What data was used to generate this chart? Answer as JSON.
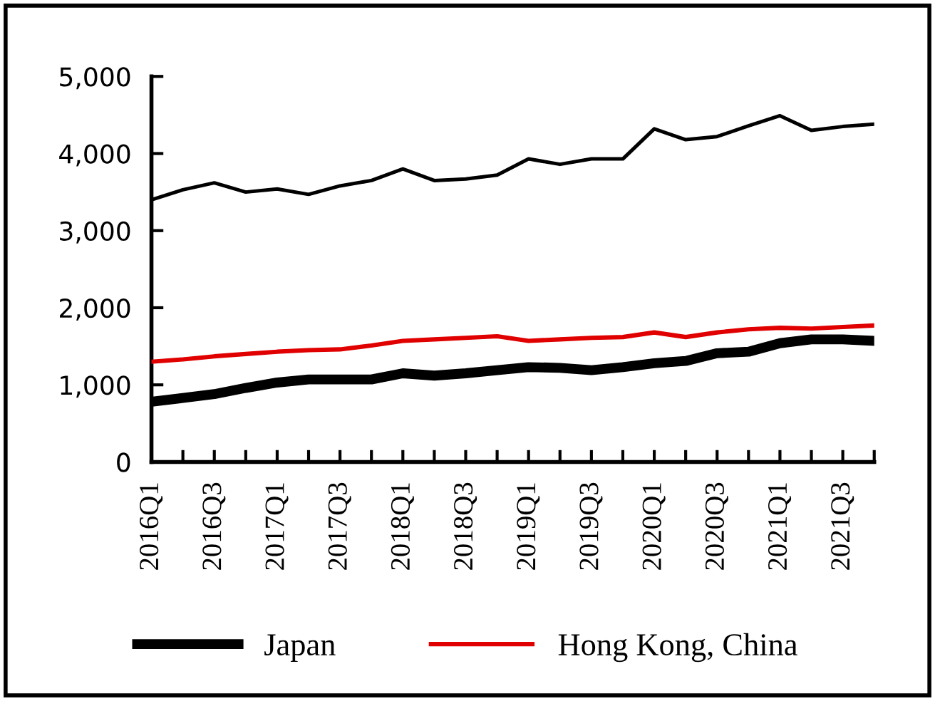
{
  "chart_data": {
    "type": "line",
    "categories": [
      "2016Q1",
      null,
      "2016Q3",
      null,
      "2017Q1",
      null,
      "2017Q3",
      null,
      "2018Q1",
      null,
      "2018Q3",
      null,
      "2019Q1",
      null,
      "2019Q3",
      null,
      "2020Q1",
      null,
      "2020Q3",
      null,
      "2021Q1",
      null,
      "2021Q3",
      null
    ],
    "series": [
      {
        "color": "#000000",
        "values": [
          3400,
          3530,
          3620,
          3500,
          3540,
          3470,
          3580,
          3650,
          3800,
          3650,
          3670,
          3720,
          3930,
          3860,
          3930,
          3930,
          4320,
          4180,
          4220,
          4360,
          4490,
          4300,
          4350,
          4380
        ]
      },
      {
        "name": "Japan",
        "color": "#000000",
        "values": [
          780,
          830,
          880,
          960,
          1030,
          1070,
          1070,
          1070,
          1150,
          1120,
          1150,
          1190,
          1230,
          1220,
          1190,
          1230,
          1280,
          1310,
          1410,
          1430,
          1540,
          1590,
          1590,
          1570
        ]
      },
      {
        "name": "Hong Kong, China",
        "color": "#e00000",
        "values": [
          1300,
          1330,
          1370,
          1400,
          1430,
          1450,
          1460,
          1510,
          1570,
          1590,
          1610,
          1630,
          1570,
          1590,
          1610,
          1620,
          1680,
          1620,
          1680,
          1720,
          1740,
          1730,
          1750,
          1770
        ]
      }
    ],
    "ylim": [
      0,
      5000
    ],
    "yticks": [
      {
        "value": 0,
        "label": "0"
      },
      {
        "value": 1000,
        "label": "1,000"
      },
      {
        "value": 2000,
        "label": "2,000"
      },
      {
        "value": 3000,
        "label": "3,000"
      },
      {
        "value": 4000,
        "label": "4,000"
      },
      {
        "value": 5000,
        "label": "5,000"
      }
    ],
    "grid": false,
    "legend": "bottom",
    "line_style": "solid"
  }
}
